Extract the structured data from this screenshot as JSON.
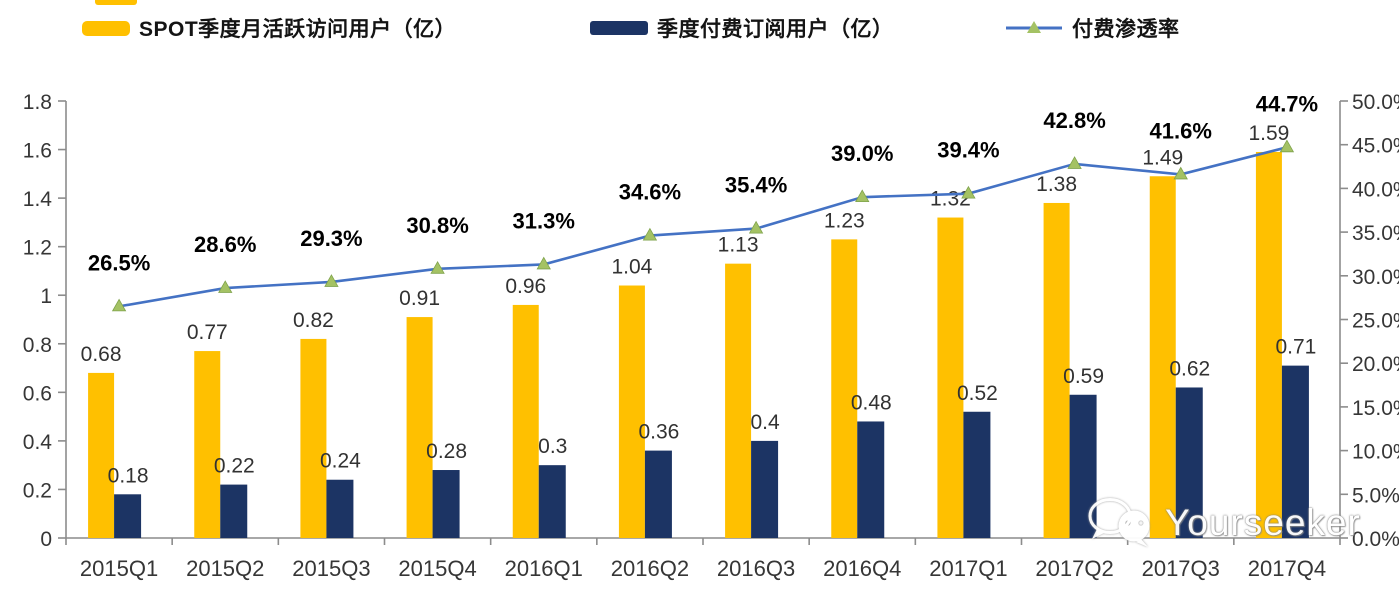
{
  "legend": {
    "items": [
      {
        "label": "SPOT季度月活跃访问用户（亿）",
        "color": "#FFC000",
        "type": "bar"
      },
      {
        "label": "季度付费订阅用户（亿）",
        "color": "#1C3464",
        "type": "bar"
      },
      {
        "label": "付费渗透率",
        "color": "#4472C4",
        "marker_color": "#A4C264",
        "type": "line"
      }
    ],
    "position": "top"
  },
  "watermark": {
    "text": "Yourseeker",
    "icon": "wechat-icon"
  },
  "chart_data": {
    "type": "bar",
    "subtype": "grouped-bar-with-line-combo",
    "categories": [
      "2015Q1",
      "2015Q2",
      "2015Q3",
      "2015Q4",
      "2016Q1",
      "2016Q2",
      "2016Q3",
      "2016Q4",
      "2017Q1",
      "2017Q2",
      "2017Q3",
      "2017Q4"
    ],
    "series": [
      {
        "name": "SPOT季度月活跃访问用户（亿）",
        "type": "bar",
        "axis": "left",
        "color": "#FFC000",
        "values": [
          0.68,
          0.77,
          0.82,
          0.91,
          0.96,
          1.04,
          1.13,
          1.23,
          1.32,
          1.38,
          1.49,
          1.59
        ]
      },
      {
        "name": "季度付费订阅用户（亿）",
        "type": "bar",
        "axis": "left",
        "color": "#1C3464",
        "values": [
          0.18,
          0.22,
          0.24,
          0.28,
          0.3,
          0.36,
          0.4,
          0.48,
          0.52,
          0.59,
          0.62,
          0.71
        ]
      },
      {
        "name": "付费渗透率",
        "type": "line",
        "axis": "right",
        "color": "#4472C4",
        "marker": "triangle",
        "marker_color": "#A4C264",
        "values": [
          26.5,
          28.6,
          29.3,
          30.8,
          31.3,
          34.6,
          35.4,
          39.0,
          39.4,
          42.8,
          41.6,
          44.7
        ]
      }
    ],
    "left_axis": {
      "min": 0,
      "max": 1.8,
      "tick_labels": [
        "0",
        "0.2",
        "0.4",
        "0.6",
        "0.8",
        "1",
        "1.2",
        "1.4",
        "1.6",
        "1.8"
      ]
    },
    "right_axis": {
      "min": 0,
      "max": 50,
      "tick_labels": [
        "0.0%",
        "5.0%",
        "10.0%",
        "15.0%",
        "20.0%",
        "25.0%",
        "30.0%",
        "35.0%",
        "40.0%",
        "45.0%",
        "50.0%"
      ]
    },
    "grid": false,
    "legend_position": "top",
    "title": ""
  },
  "colors": {
    "axis_line": "#8C8C8C",
    "tick_label": "#363636",
    "bar_label": "#323232",
    "pct_label": "#000000"
  }
}
